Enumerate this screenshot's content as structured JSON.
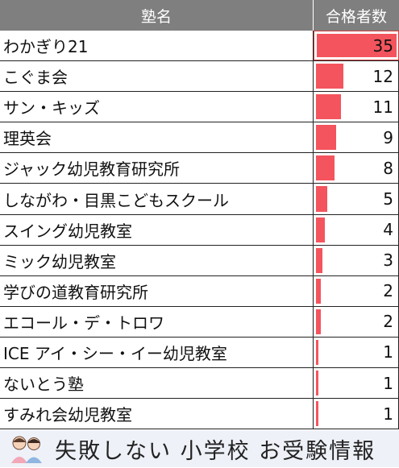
{
  "header": {
    "name_label": "塾名",
    "count_label": "合格者数"
  },
  "chart_data": {
    "type": "bar",
    "xlabel": "",
    "ylabel": "",
    "colors": {
      "bar": "#f4545d",
      "header_bg": "#7f7f7f"
    },
    "categories": [
      "わかぎり21",
      "こぐま会",
      "サン・キッズ",
      "理英会",
      "ジャック幼児教育研究所",
      "しながわ・目黒こどもスクール",
      "スイング幼児教室",
      "ミック幼児教室",
      "学びの道教育研究所",
      "エコール・デ・トロワ",
      "ICE アイ・シー・イー幼児教室",
      "ないとう塾",
      "すみれ会幼児教室"
    ],
    "values": [
      35,
      12,
      11,
      9,
      8,
      5,
      4,
      3,
      2,
      2,
      1,
      1,
      1
    ],
    "ylim": [
      0,
      35
    ]
  },
  "footer": {
    "text": "失敗しない 小学校 お受験情報",
    "logo_icon": "two-children-icon"
  }
}
